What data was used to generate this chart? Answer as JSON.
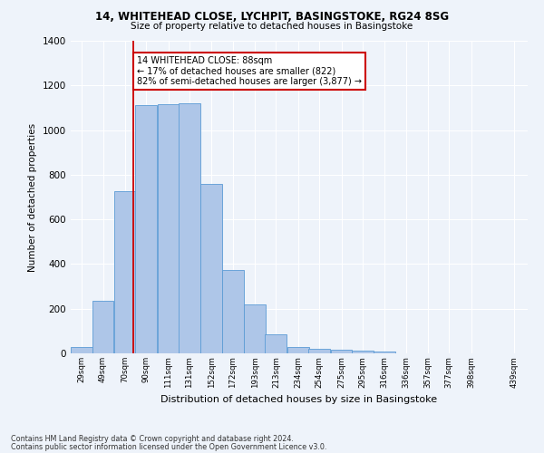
{
  "title": "14, WHITEHEAD CLOSE, LYCHPIT, BASINGSTOKE, RG24 8SG",
  "subtitle": "Size of property relative to detached houses in Basingstoke",
  "xlabel": "Distribution of detached houses by size in Basingstoke",
  "ylabel": "Number of detached properties",
  "footnote1": "Contains HM Land Registry data © Crown copyright and database right 2024.",
  "footnote2": "Contains public sector information licensed under the Open Government Licence v3.0.",
  "bar_labels": [
    "29sqm",
    "49sqm",
    "70sqm",
    "90sqm",
    "111sqm",
    "131sqm",
    "152sqm",
    "172sqm",
    "193sqm",
    "213sqm",
    "234sqm",
    "254sqm",
    "275sqm",
    "295sqm",
    "316sqm",
    "336sqm",
    "357sqm",
    "377sqm",
    "398sqm",
    "439sqm"
  ],
  "bar_values": [
    30,
    235,
    725,
    1110,
    1115,
    1120,
    760,
    375,
    220,
    85,
    28,
    22,
    18,
    13,
    10,
    0,
    0,
    0,
    0,
    0
  ],
  "bar_color": "#aec6e8",
  "bar_edge_color": "#5b9bd5",
  "background_color": "#eef3fa",
  "grid_color": "#ffffff",
  "vline_x": 88,
  "vline_color": "#cc0000",
  "annotation_text": "14 WHITEHEAD CLOSE: 88sqm\n← 17% of detached houses are smaller (822)\n82% of semi-detached houses are larger (3,877) →",
  "annotation_box_color": "#ffffff",
  "annotation_box_edge_color": "#cc0000",
  "ylim": [
    0,
    1400
  ],
  "yticks": [
    0,
    200,
    400,
    600,
    800,
    1000,
    1200,
    1400
  ],
  "bin_width": 21
}
